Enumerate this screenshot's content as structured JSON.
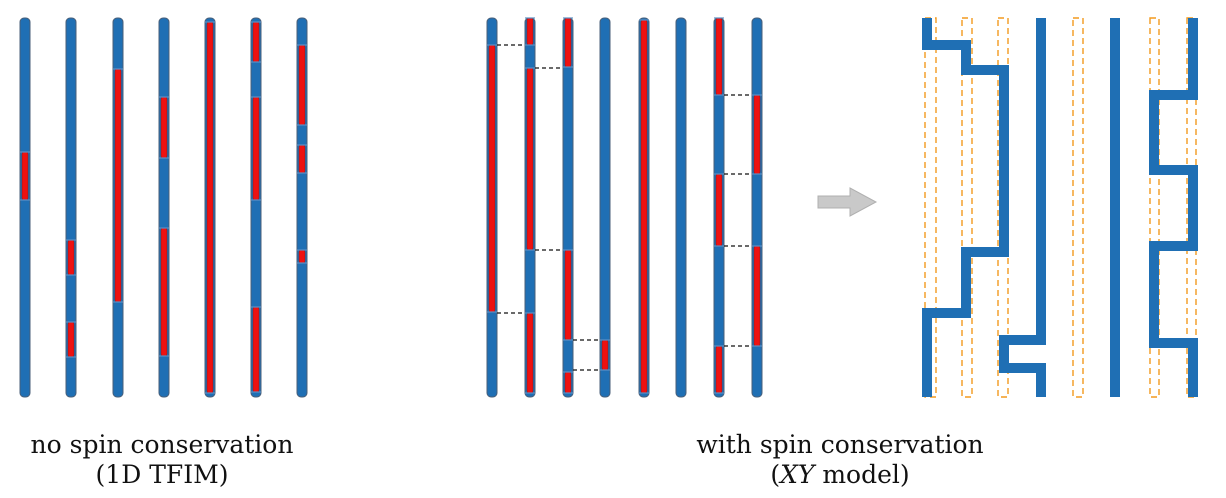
{
  "colors": {
    "spin_up": "#1f6fb4",
    "spin_down": "#ee1111",
    "outline": "#4a5f78",
    "bond": "#111111",
    "ghost": "#f39a1e",
    "arrow_fill": "#c9c9c9",
    "arrow_stroke": "#b0b0b0"
  },
  "panels": {
    "left": {
      "line1": "no spin conservation",
      "line2": "(1D TFIM)"
    },
    "right": {
      "line1": "with spin conservation",
      "line2_italic": "XY",
      "line2_rest": " model)",
      "line2_open": "("
    }
  },
  "icons": {
    "transform_arrow": "right-arrow-icon"
  }
}
